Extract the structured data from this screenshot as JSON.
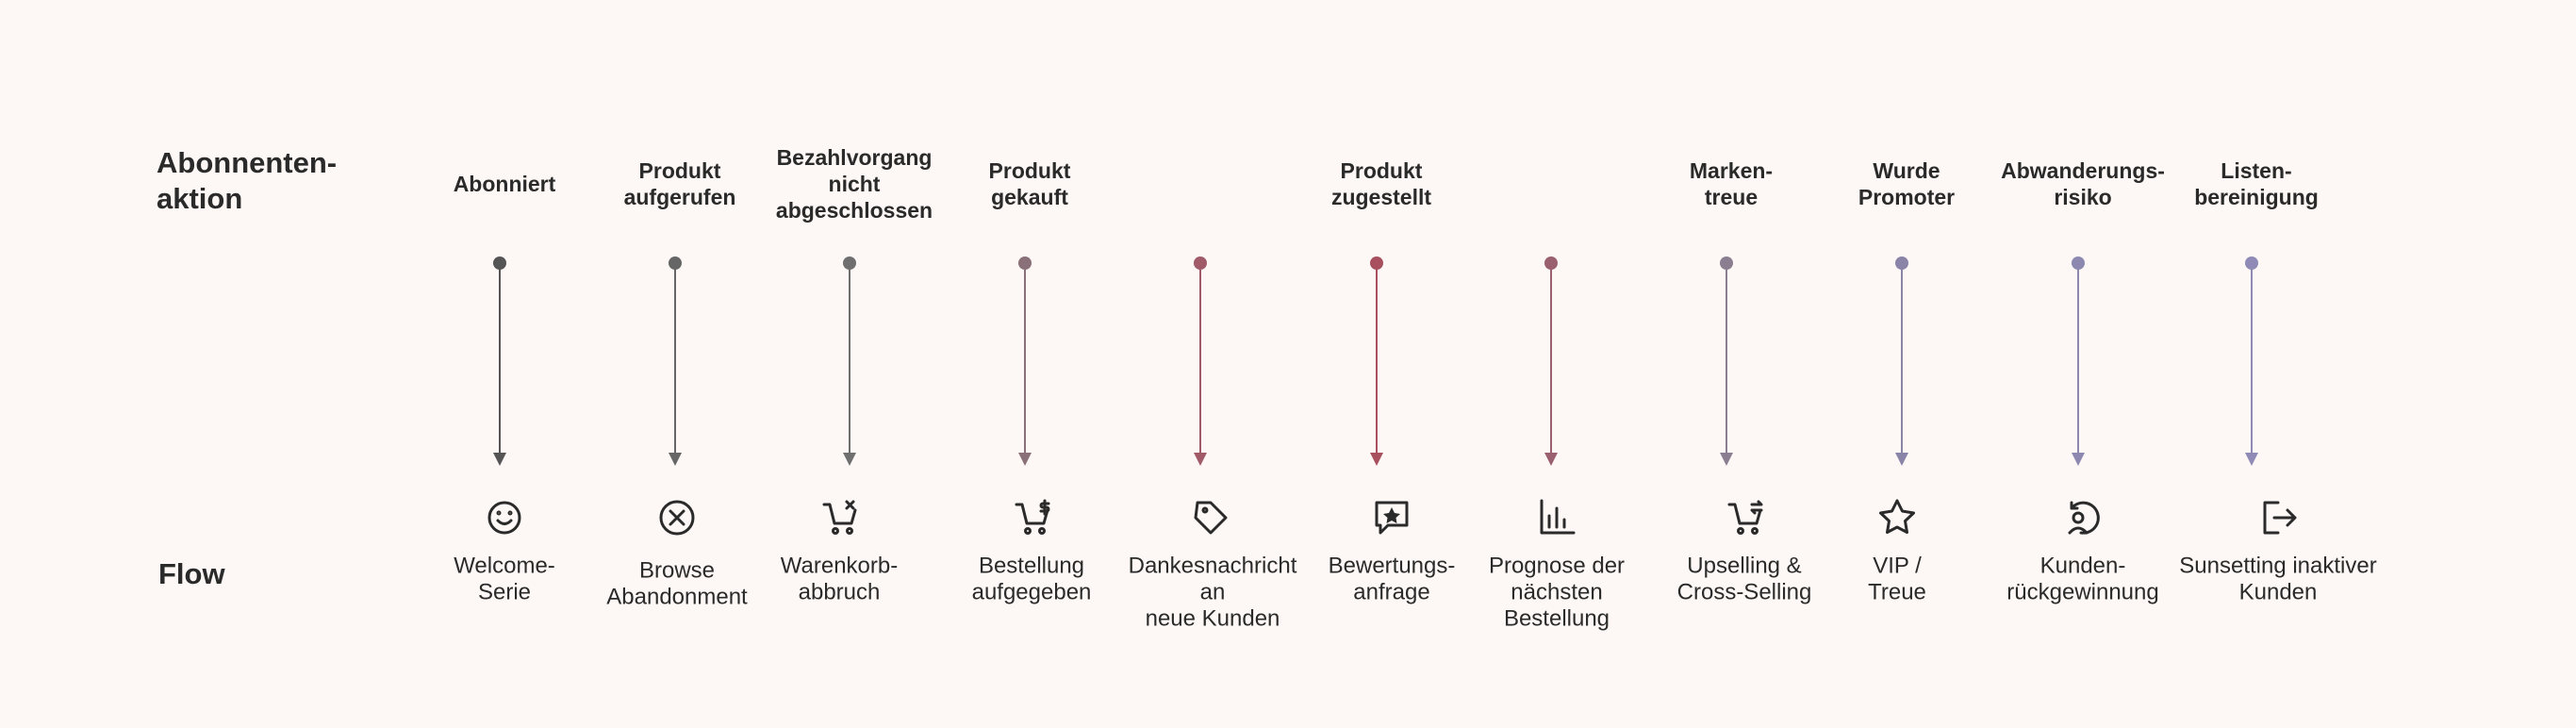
{
  "row_labels": {
    "action": [
      "Abonnenten-",
      "aktion"
    ],
    "flow": [
      "Flow"
    ]
  },
  "columns": [
    {
      "action": [
        "Abonniert"
      ],
      "flow": [
        "Welcome-",
        "Serie"
      ]
    },
    {
      "action": [
        "Produkt",
        "aufgerufen"
      ],
      "flow": [
        "Browse",
        "Abandonment"
      ]
    },
    {
      "action": [
        "Bezahlvorgang",
        "nicht",
        "abgeschlossen"
      ],
      "flow": [
        "Warenkorb-",
        "abbruch"
      ]
    },
    {
      "action": [
        "Produkt",
        "gekauft"
      ],
      "flow": [
        "Bestellung",
        "aufgegeben"
      ]
    },
    {
      "action": [],
      "flow": [
        "Dankesnachricht",
        "an",
        "neue Kunden"
      ]
    },
    {
      "action": [
        "Produkt",
        "zugestellt"
      ],
      "flow": [
        "Bewertungs-",
        "anfrage"
      ]
    },
    {
      "action": [],
      "flow": [
        "Prognose der",
        "nächsten",
        "Bestellung"
      ]
    },
    {
      "action": [
        "Marken-",
        "treue"
      ],
      "flow": [
        "Upselling &",
        "Cross-Selling"
      ]
    },
    {
      "action": [
        "Wurde",
        "Promoter"
      ],
      "flow": [
        "VIP /",
        "Treue"
      ]
    },
    {
      "action": [
        "Abwanderungs-",
        "risiko"
      ],
      "flow": [
        "Kunden-",
        "rückgewinnung"
      ]
    },
    {
      "action": [
        "Listen-",
        "bereinigung"
      ],
      "flow": [
        "Sunsetting inaktiver",
        "Kunden"
      ]
    }
  ]
}
